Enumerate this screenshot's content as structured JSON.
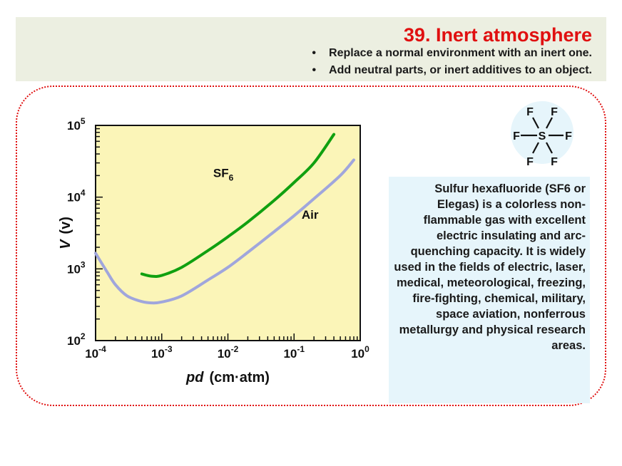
{
  "header": {
    "title": "39. Inert atmosphere",
    "bullets": [
      "Replace a normal environment with an inert one.",
      "Add neutral parts, or inert additives to an object."
    ],
    "bullet_char": "•"
  },
  "molecule": {
    "center": "S",
    "ligand": "F"
  },
  "description": "Sulfur hexafluoride (SF6 or Elegas) is a colorless non-flammable gas with excellent electric insulating and arc-quenching capacity. It is widely used in the fields of electric, laser, medical, meteorological, freezing, fire-fighting, chemical, military, space aviation, nonferrous metallurgy and physical research areas.",
  "colors": {
    "title": "#e01010",
    "header_bg": "#ecefe1",
    "frame_border": "#e01010",
    "plot_bg": "#fbf5b8",
    "sf6_line": "#10a010",
    "air_line": "#a0a6dc",
    "desc_bg": "#e6f5fb",
    "molecule_bg": "#e6f5fb"
  },
  "chart_data": {
    "type": "line",
    "x_scale": "log",
    "y_scale": "log",
    "xlabel": "pd",
    "xlabel_unit": "(cm·atm)",
    "ylabel": "V",
    "ylabel_unit": "(v)",
    "xlim": [
      0.0001,
      1
    ],
    "ylim": [
      100,
      100000
    ],
    "x_ticks": [
      {
        "base": "10",
        "exp": "-4"
      },
      {
        "base": "10",
        "exp": "-3"
      },
      {
        "base": "10",
        "exp": "-2"
      },
      {
        "base": "10",
        "exp": "-1"
      },
      {
        "base": "10",
        "exp": "0"
      }
    ],
    "y_ticks": [
      {
        "base": "10",
        "exp": "2"
      },
      {
        "base": "10",
        "exp": "3"
      },
      {
        "base": "10",
        "exp": "4"
      },
      {
        "base": "10",
        "exp": "5"
      }
    ],
    "series": [
      {
        "name": "SF6",
        "label_base": "SF",
        "label_sub": "6",
        "x": [
          0.0005,
          0.0007,
          0.001,
          0.002,
          0.005,
          0.01,
          0.02,
          0.05,
          0.1,
          0.2,
          0.4
        ],
        "y": [
          850,
          790,
          810,
          1050,
          1800,
          2800,
          4500,
          9000,
          16000,
          30000,
          75000
        ]
      },
      {
        "name": "Air",
        "x": [
          0.0001,
          0.00015,
          0.0002,
          0.0003,
          0.0005,
          0.0007,
          0.001,
          0.002,
          0.005,
          0.01,
          0.02,
          0.05,
          0.1,
          0.2,
          0.5,
          0.8
        ],
        "y": [
          1650,
          900,
          600,
          420,
          350,
          335,
          345,
          420,
          700,
          1050,
          1700,
          3300,
          5500,
          9500,
          20000,
          33000
        ]
      }
    ]
  }
}
